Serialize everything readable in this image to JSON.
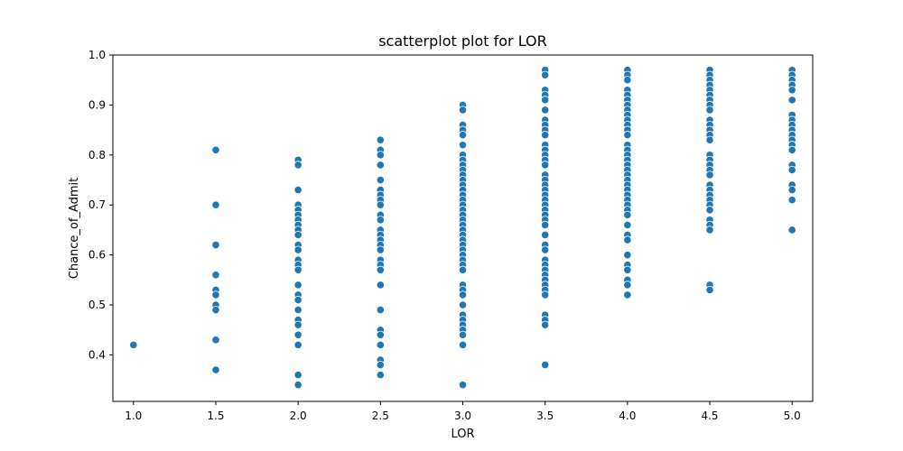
{
  "chart_data": {
    "type": "scatter",
    "title": "scatterplot plot for LOR",
    "xlabel": "LOR",
    "ylabel": "Chance_of_Admit",
    "xlim": [
      0.875,
      5.125
    ],
    "ylim": [
      0.307,
      1.0
    ],
    "xticks": [
      "1.0",
      "1.5",
      "2.0",
      "2.5",
      "3.0",
      "3.5",
      "4.0",
      "4.5",
      "5.0"
    ],
    "yticks": [
      "0.4",
      "0.5",
      "0.6",
      "0.7",
      "0.8",
      "0.9",
      "1.0"
    ],
    "grid": false,
    "legend": "none",
    "point_color": "#1f77b4",
    "series": [
      {
        "points": [
          [
            1.0,
            0.42
          ],
          [
            1.5,
            0.81
          ],
          [
            1.5,
            0.7
          ],
          [
            1.5,
            0.62
          ],
          [
            1.5,
            0.56
          ],
          [
            1.5,
            0.53
          ],
          [
            1.5,
            0.52
          ],
          [
            1.5,
            0.5
          ],
          [
            1.5,
            0.49
          ],
          [
            1.5,
            0.43
          ],
          [
            1.5,
            0.37
          ],
          [
            2.0,
            0.79
          ],
          [
            2.0,
            0.78
          ],
          [
            2.0,
            0.73
          ],
          [
            2.0,
            0.7
          ],
          [
            2.0,
            0.69
          ],
          [
            2.0,
            0.68
          ],
          [
            2.0,
            0.67
          ],
          [
            2.0,
            0.66
          ],
          [
            2.0,
            0.65
          ],
          [
            2.0,
            0.64
          ],
          [
            2.0,
            0.62
          ],
          [
            2.0,
            0.61
          ],
          [
            2.0,
            0.59
          ],
          [
            2.0,
            0.58
          ],
          [
            2.0,
            0.57
          ],
          [
            2.0,
            0.54
          ],
          [
            2.0,
            0.52
          ],
          [
            2.0,
            0.51
          ],
          [
            2.0,
            0.49
          ],
          [
            2.0,
            0.47
          ],
          [
            2.0,
            0.46
          ],
          [
            2.0,
            0.44
          ],
          [
            2.0,
            0.42
          ],
          [
            2.0,
            0.36
          ],
          [
            2.0,
            0.34
          ],
          [
            2.5,
            0.83
          ],
          [
            2.5,
            0.81
          ],
          [
            2.5,
            0.8
          ],
          [
            2.5,
            0.78
          ],
          [
            2.5,
            0.75
          ],
          [
            2.5,
            0.73
          ],
          [
            2.5,
            0.72
          ],
          [
            2.5,
            0.71
          ],
          [
            2.5,
            0.7
          ],
          [
            2.5,
            0.68
          ],
          [
            2.5,
            0.67
          ],
          [
            2.5,
            0.65
          ],
          [
            2.5,
            0.64
          ],
          [
            2.5,
            0.63
          ],
          [
            2.5,
            0.62
          ],
          [
            2.5,
            0.61
          ],
          [
            2.5,
            0.59
          ],
          [
            2.5,
            0.58
          ],
          [
            2.5,
            0.57
          ],
          [
            2.5,
            0.54
          ],
          [
            2.5,
            0.49
          ],
          [
            2.5,
            0.45
          ],
          [
            2.5,
            0.44
          ],
          [
            2.5,
            0.42
          ],
          [
            2.5,
            0.39
          ],
          [
            2.5,
            0.38
          ],
          [
            2.5,
            0.36
          ],
          [
            3.0,
            0.9
          ],
          [
            3.0,
            0.89
          ],
          [
            3.0,
            0.86
          ],
          [
            3.0,
            0.85
          ],
          [
            3.0,
            0.84
          ],
          [
            3.0,
            0.82
          ],
          [
            3.0,
            0.8
          ],
          [
            3.0,
            0.79
          ],
          [
            3.0,
            0.78
          ],
          [
            3.0,
            0.77
          ],
          [
            3.0,
            0.76
          ],
          [
            3.0,
            0.75
          ],
          [
            3.0,
            0.74
          ],
          [
            3.0,
            0.73
          ],
          [
            3.0,
            0.72
          ],
          [
            3.0,
            0.71
          ],
          [
            3.0,
            0.7
          ],
          [
            3.0,
            0.69
          ],
          [
            3.0,
            0.68
          ],
          [
            3.0,
            0.67
          ],
          [
            3.0,
            0.66
          ],
          [
            3.0,
            0.65
          ],
          [
            3.0,
            0.64
          ],
          [
            3.0,
            0.63
          ],
          [
            3.0,
            0.62
          ],
          [
            3.0,
            0.61
          ],
          [
            3.0,
            0.6
          ],
          [
            3.0,
            0.59
          ],
          [
            3.0,
            0.58
          ],
          [
            3.0,
            0.57
          ],
          [
            3.0,
            0.54
          ],
          [
            3.0,
            0.53
          ],
          [
            3.0,
            0.52
          ],
          [
            3.0,
            0.5
          ],
          [
            3.0,
            0.48
          ],
          [
            3.0,
            0.47
          ],
          [
            3.0,
            0.46
          ],
          [
            3.0,
            0.45
          ],
          [
            3.0,
            0.44
          ],
          [
            3.0,
            0.42
          ],
          [
            3.0,
            0.34
          ],
          [
            3.5,
            0.97
          ],
          [
            3.5,
            0.96
          ],
          [
            3.5,
            0.93
          ],
          [
            3.5,
            0.92
          ],
          [
            3.5,
            0.91
          ],
          [
            3.5,
            0.89
          ],
          [
            3.5,
            0.87
          ],
          [
            3.5,
            0.86
          ],
          [
            3.5,
            0.85
          ],
          [
            3.5,
            0.84
          ],
          [
            3.5,
            0.82
          ],
          [
            3.5,
            0.81
          ],
          [
            3.5,
            0.8
          ],
          [
            3.5,
            0.79
          ],
          [
            3.5,
            0.78
          ],
          [
            3.5,
            0.76
          ],
          [
            3.5,
            0.75
          ],
          [
            3.5,
            0.74
          ],
          [
            3.5,
            0.73
          ],
          [
            3.5,
            0.72
          ],
          [
            3.5,
            0.71
          ],
          [
            3.5,
            0.7
          ],
          [
            3.5,
            0.69
          ],
          [
            3.5,
            0.68
          ],
          [
            3.5,
            0.67
          ],
          [
            3.5,
            0.66
          ],
          [
            3.5,
            0.64
          ],
          [
            3.5,
            0.62
          ],
          [
            3.5,
            0.61
          ],
          [
            3.5,
            0.59
          ],
          [
            3.5,
            0.58
          ],
          [
            3.5,
            0.57
          ],
          [
            3.5,
            0.56
          ],
          [
            3.5,
            0.55
          ],
          [
            3.5,
            0.54
          ],
          [
            3.5,
            0.53
          ],
          [
            3.5,
            0.52
          ],
          [
            3.5,
            0.48
          ],
          [
            3.5,
            0.47
          ],
          [
            3.5,
            0.46
          ],
          [
            3.5,
            0.38
          ],
          [
            4.0,
            0.97
          ],
          [
            4.0,
            0.96
          ],
          [
            4.0,
            0.95
          ],
          [
            4.0,
            0.93
          ],
          [
            4.0,
            0.92
          ],
          [
            4.0,
            0.91
          ],
          [
            4.0,
            0.9
          ],
          [
            4.0,
            0.89
          ],
          [
            4.0,
            0.88
          ],
          [
            4.0,
            0.87
          ],
          [
            4.0,
            0.86
          ],
          [
            4.0,
            0.85
          ],
          [
            4.0,
            0.84
          ],
          [
            4.0,
            0.82
          ],
          [
            4.0,
            0.81
          ],
          [
            4.0,
            0.8
          ],
          [
            4.0,
            0.79
          ],
          [
            4.0,
            0.78
          ],
          [
            4.0,
            0.77
          ],
          [
            4.0,
            0.76
          ],
          [
            4.0,
            0.75
          ],
          [
            4.0,
            0.74
          ],
          [
            4.0,
            0.73
          ],
          [
            4.0,
            0.72
          ],
          [
            4.0,
            0.71
          ],
          [
            4.0,
            0.7
          ],
          [
            4.0,
            0.69
          ],
          [
            4.0,
            0.68
          ],
          [
            4.0,
            0.66
          ],
          [
            4.0,
            0.64
          ],
          [
            4.0,
            0.63
          ],
          [
            4.0,
            0.6
          ],
          [
            4.0,
            0.58
          ],
          [
            4.0,
            0.57
          ],
          [
            4.0,
            0.55
          ],
          [
            4.0,
            0.54
          ],
          [
            4.0,
            0.52
          ],
          [
            4.5,
            0.97
          ],
          [
            4.5,
            0.96
          ],
          [
            4.5,
            0.95
          ],
          [
            4.5,
            0.94
          ],
          [
            4.5,
            0.93
          ],
          [
            4.5,
            0.92
          ],
          [
            4.5,
            0.91
          ],
          [
            4.5,
            0.9
          ],
          [
            4.5,
            0.89
          ],
          [
            4.5,
            0.87
          ],
          [
            4.5,
            0.86
          ],
          [
            4.5,
            0.85
          ],
          [
            4.5,
            0.84
          ],
          [
            4.5,
            0.83
          ],
          [
            4.5,
            0.8
          ],
          [
            4.5,
            0.79
          ],
          [
            4.5,
            0.78
          ],
          [
            4.5,
            0.77
          ],
          [
            4.5,
            0.76
          ],
          [
            4.5,
            0.74
          ],
          [
            4.5,
            0.73
          ],
          [
            4.5,
            0.72
          ],
          [
            4.5,
            0.71
          ],
          [
            4.5,
            0.7
          ],
          [
            4.5,
            0.69
          ],
          [
            4.5,
            0.67
          ],
          [
            4.5,
            0.66
          ],
          [
            4.5,
            0.65
          ],
          [
            4.5,
            0.54
          ],
          [
            4.5,
            0.53
          ],
          [
            5.0,
            0.97
          ],
          [
            5.0,
            0.96
          ],
          [
            5.0,
            0.95
          ],
          [
            5.0,
            0.94
          ],
          [
            5.0,
            0.93
          ],
          [
            5.0,
            0.91
          ],
          [
            5.0,
            0.88
          ],
          [
            5.0,
            0.87
          ],
          [
            5.0,
            0.86
          ],
          [
            5.0,
            0.85
          ],
          [
            5.0,
            0.84
          ],
          [
            5.0,
            0.83
          ],
          [
            5.0,
            0.82
          ],
          [
            5.0,
            0.81
          ],
          [
            5.0,
            0.78
          ],
          [
            5.0,
            0.77
          ],
          [
            5.0,
            0.74
          ],
          [
            5.0,
            0.73
          ],
          [
            5.0,
            0.71
          ],
          [
            5.0,
            0.65
          ]
        ]
      }
    ]
  }
}
